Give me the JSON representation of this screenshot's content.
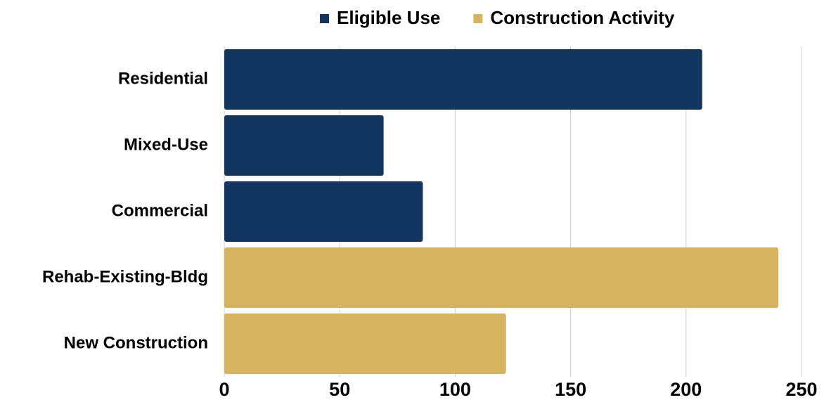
{
  "chart_data": {
    "type": "hbar",
    "categories": [
      "Residential",
      "Mixed-Use",
      "Commercial",
      "Rehab-Existing-Bldg",
      "New Construction"
    ],
    "series": [
      {
        "name": "Eligible Use",
        "color": "#133660",
        "values": [
          207,
          69,
          86,
          null,
          null
        ]
      },
      {
        "name": "Construction Activity",
        "color": "#d6b35e",
        "values": [
          null,
          null,
          null,
          240,
          122
        ]
      }
    ],
    "xlim": [
      0,
      250
    ],
    "xticks": [
      0,
      50,
      100,
      150,
      200,
      250
    ],
    "grid": true,
    "legend": "top"
  }
}
